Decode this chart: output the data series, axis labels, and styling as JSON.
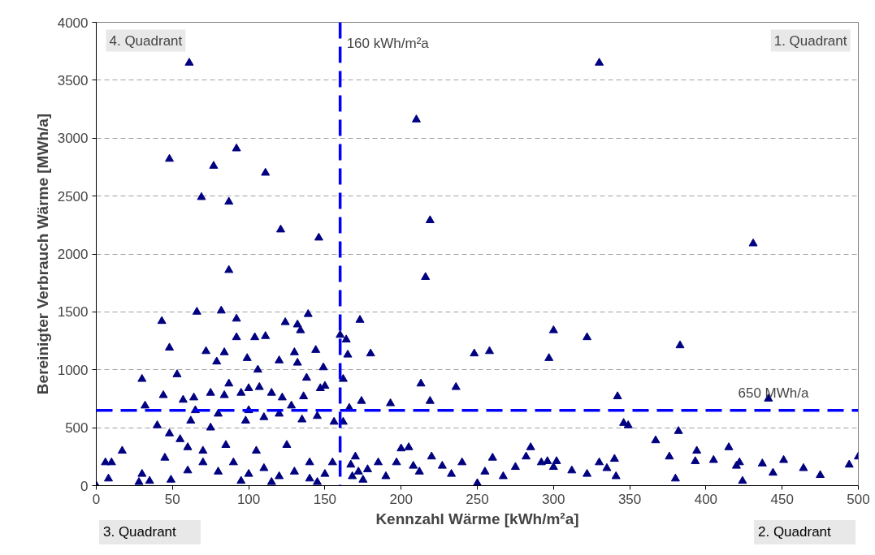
{
  "chart_data": {
    "type": "scatter",
    "xlabel": "Kennzahl Wärme [kWh/m²a]",
    "ylabel": "Bereinigter Verbrauch Wärme [MWh/a]",
    "annotations": [
      "4. Quadrant",
      "1. Quadrant",
      "3. Quadrant",
      "2. Quadrant"
    ],
    "ref_lines": [
      {
        "axis": "x",
        "value": 160,
        "label": "160 kWh/m²a",
        "color": "#0000ff",
        "line_style": "dashed"
      },
      {
        "axis": "y",
        "value": 650,
        "label": "650 MWh/a",
        "color": "#0000ff",
        "line_style": "dashed"
      }
    ],
    "xlim": [
      0,
      500
    ],
    "xticks": [
      0,
      50,
      100,
      150,
      200,
      250,
      300,
      350,
      400,
      450,
      500
    ],
    "ylim": [
      0,
      4000
    ],
    "yticks": [
      0,
      500,
      1000,
      1500,
      2000,
      2500,
      3000,
      3500,
      4000
    ],
    "grid": "y",
    "marker": "triangle",
    "series": [
      {
        "color": "#000080",
        "x": [
          61,
          48,
          69,
          77,
          87,
          92,
          111,
          87,
          121,
          146,
          210,
          219,
          216,
          330,
          431,
          383,
          441,
          342,
          300,
          322,
          297,
          258,
          248,
          236,
          213,
          193,
          180,
          173,
          164,
          165,
          160,
          162,
          174,
          219,
          166,
          43,
          48,
          66,
          82,
          92,
          92,
          104,
          111,
          124,
          132,
          139,
          134,
          144,
          130,
          106,
          99,
          84,
          72,
          79,
          120,
          100,
          107,
          87,
          53,
          30,
          32,
          40,
          44,
          57,
          64,
          75,
          84,
          95,
          115,
          132,
          138,
          149,
          147,
          122,
          136,
          128,
          150,
          156,
          110,
          98,
          75,
          62,
          55,
          60,
          48,
          45,
          30,
          10,
          17,
          6,
          8,
          28,
          35,
          49,
          60,
          70,
          80,
          90,
          100,
          110,
          120,
          130,
          140,
          150,
          155,
          105,
          85,
          125,
          140,
          95,
          115,
          145,
          0,
          70,
          65,
          80,
          100,
          120,
          135,
          145,
          162,
          170,
          178,
          185,
          190,
          197,
          200,
          205,
          208,
          212,
          220,
          227,
          233,
          240,
          250,
          255,
          260,
          267,
          275,
          282,
          285,
          292,
          296,
          300,
          302,
          312,
          322,
          330,
          335,
          340,
          341,
          346,
          349,
          367,
          376,
          380,
          382,
          393,
          394,
          405,
          415,
          420,
          422,
          424,
          437,
          444,
          451,
          464,
          475,
          494,
          500,
          167,
          172,
          175,
          168
        ],
        "values": [
          3650,
          2820,
          2490,
          2760,
          2450,
          2910,
          2700,
          1860,
          2210,
          2140,
          3160,
          2290,
          1800,
          3650,
          2090,
          1210,
          750,
          770,
          1340,
          1280,
          1100,
          1160,
          1140,
          850,
          880,
          710,
          1140,
          1430,
          1260,
          1130,
          1300,
          920,
          730,
          730,
          670,
          1420,
          1190,
          1500,
          1510,
          1440,
          1280,
          1280,
          1290,
          1410,
          1390,
          1480,
          1340,
          1170,
          1150,
          1000,
          1100,
          1150,
          1160,
          1070,
          1080,
          840,
          850,
          880,
          960,
          920,
          690,
          520,
          780,
          740,
          760,
          800,
          780,
          800,
          800,
          1060,
          930,
          1020,
          840,
          760,
          770,
          690,
          860,
          550,
          590,
          560,
          500,
          560,
          400,
          330,
          450,
          240,
          100,
          200,
          300,
          200,
          60,
          30,
          40,
          50,
          130,
          200,
          120,
          200,
          100,
          150,
          80,
          120,
          60,
          100,
          200,
          300,
          350,
          350,
          200,
          40,
          30,
          30,
          0,
          300,
          650,
          620,
          650,
          620,
          570,
          600,
          550,
          250,
          140,
          200,
          80,
          200,
          320,
          330,
          170,
          120,
          250,
          170,
          100,
          200,
          20,
          120,
          240,
          80,
          160,
          250,
          330,
          200,
          210,
          160,
          210,
          130,
          100,
          200,
          150,
          230,
          80,
          540,
          520,
          390,
          250,
          60,
          470,
          210,
          300,
          220,
          330,
          170,
          200,
          40,
          190,
          110,
          220,
          150,
          90,
          180,
          250,
          180,
          120,
          50,
          80
        ]
      }
    ]
  }
}
